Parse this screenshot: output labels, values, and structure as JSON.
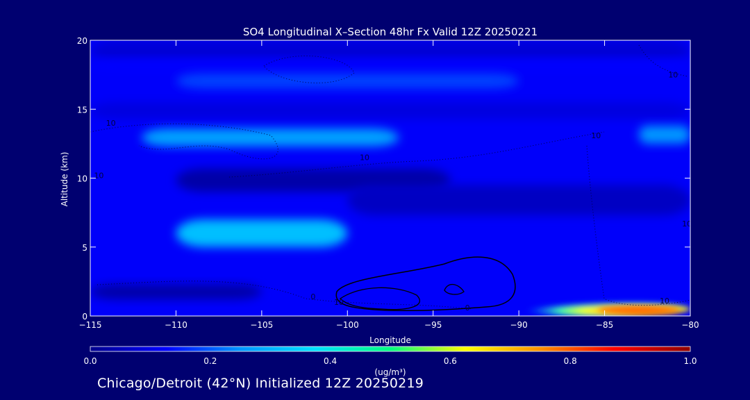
{
  "chart_data": {
    "type": "heatmap",
    "title": "SO4 Longitudinal X–Section 48hr  Fx Valid 12Z 20250221",
    "xlabel": "Longitude",
    "ylabel": "Altitude (km)",
    "xlim": [
      -115,
      -80
    ],
    "ylim": [
      0,
      20
    ],
    "x_ticks": [
      -115,
      -110,
      -105,
      -100,
      -95,
      -90,
      -85,
      -80
    ],
    "x_tick_labels": [
      "−115",
      "−110",
      "−105",
      "−100",
      "−95",
      "−90",
      "−85",
      "−80"
    ],
    "y_ticks": [
      0,
      5,
      10,
      15,
      20
    ],
    "colorbar": {
      "label": "(ug/m³)",
      "range": [
        0.0,
        1.0
      ],
      "ticks": [
        0.0,
        0.2,
        0.4,
        0.6,
        0.8,
        1.0
      ],
      "tick_labels": [
        "0.0",
        "0.2",
        "0.4",
        "0.6",
        "0.8",
        "1.0"
      ],
      "colormap": "rainbow",
      "colors": [
        "#00008c",
        "#0000ff",
        "#0096ff",
        "#00e0ff",
        "#00ff80",
        "#ffff00",
        "#ff9000",
        "#ff0000",
        "#8c0000"
      ]
    },
    "fields": {
      "background_value": 0.12,
      "bands": [
        {
          "y": [
            18.5,
            20.0
          ],
          "x": [
            -115,
            -80
          ],
          "value": 0.08
        },
        {
          "y": [
            17.8,
            18.6
          ],
          "x": [
            -115,
            -80
          ],
          "value": 0.13
        },
        {
          "y": [
            16.5,
            17.6
          ],
          "x": [
            -110,
            -90
          ],
          "value": 0.18
        },
        {
          "y": [
            14.3,
            15.5
          ],
          "x": [
            -115,
            -80
          ],
          "value": 0.09
        },
        {
          "y": [
            12.3,
            13.6
          ],
          "x": [
            -112,
            -97
          ],
          "value": 0.27
        },
        {
          "y": [
            12.5,
            13.8
          ],
          "x": [
            -83,
            -80
          ],
          "value": 0.25
        },
        {
          "y": [
            9.0,
            10.7
          ],
          "x": [
            -110,
            -94
          ],
          "value": 0.03
        },
        {
          "y": [
            7.3,
            9.5
          ],
          "x": [
            -100,
            -80
          ],
          "value": 0.06
        },
        {
          "y": [
            5.0,
            7.0
          ],
          "x": [
            -110,
            -100
          ],
          "value": 0.32
        },
        {
          "y": [
            1.2,
            2.3
          ],
          "x": [
            -115,
            -105
          ],
          "value": 0.03
        }
      ],
      "surface_plume": {
        "x": [
          -92,
          -80
        ],
        "y": [
          0.0,
          1.0
        ],
        "peak_value": 0.78,
        "peak_x": -83
      }
    },
    "contours": [
      {
        "label": "10",
        "style": "dotted",
        "annotations": [
          [
            -113.8,
            13.8
          ],
          [
            -114.5,
            10.0
          ],
          [
            -99,
            11.3
          ],
          [
            -85.5,
            12.9
          ],
          [
            -81,
            17.3
          ],
          [
            -81.5,
            0.9
          ],
          [
            -80.2,
            6.5
          ]
        ]
      },
      {
        "label": "0",
        "style": "dotted",
        "annotations": [
          [
            -102,
            1.2
          ],
          [
            -93,
            0.4
          ]
        ]
      },
      {
        "label": "10",
        "style": "solid",
        "annotations": [
          [
            -100.5,
            0.8
          ]
        ]
      }
    ]
  },
  "footer": {
    "text": "Chicago/Detroit (42°N) Initialized 12Z 20250219"
  }
}
